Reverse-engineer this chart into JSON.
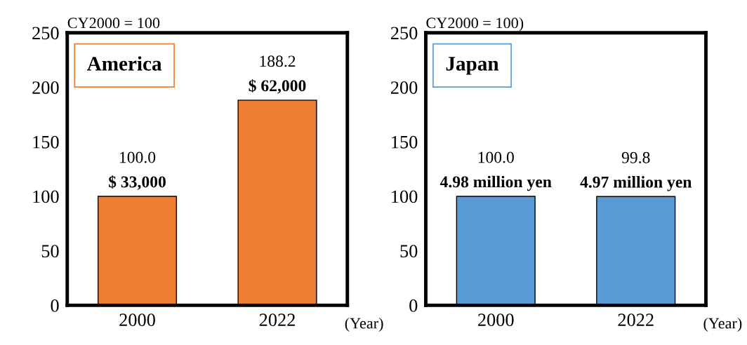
{
  "chart_data": [
    {
      "type": "bar",
      "title": "America",
      "subtitle": "CY2000 = 100",
      "xlabel": "(Year)",
      "categories": [
        "2000",
        "2022"
      ],
      "values": [
        100.0,
        188.2
      ],
      "colors": [
        "#ed7d31",
        "#ed7d31"
      ],
      "value_labels": [
        "100.0",
        "188.2"
      ],
      "ylim": [
        0,
        250
      ],
      "yticks": [
        0,
        50,
        100,
        150,
        200,
        250
      ],
      "grid": false,
      "legend": false,
      "annotations": [
        {
          "text": "$ 33,000",
          "x": "2000",
          "y": 100
        },
        {
          "text": "$ 62,000",
          "x": "2022",
          "y": 188.2
        }
      ]
    },
    {
      "type": "bar",
      "title": "Japan",
      "subtitle": "CY2000 = 100)",
      "xlabel": "(Year)",
      "categories": [
        "2000",
        "2022"
      ],
      "values": [
        100.0,
        99.8
      ],
      "colors": [
        "#5b9bd5",
        "#5b9bd5"
      ],
      "value_labels": [
        "100.0",
        "99.8"
      ],
      "ylim": [
        0,
        250
      ],
      "yticks": [
        0,
        50,
        100,
        150,
        200,
        250
      ],
      "grid": false,
      "legend": false,
      "annotations": [
        {
          "text": "4.98 million yen",
          "x": "2000",
          "y": 100
        },
        {
          "text": "4.97 million yen",
          "x": "2022",
          "y": 99.8
        }
      ]
    }
  ]
}
